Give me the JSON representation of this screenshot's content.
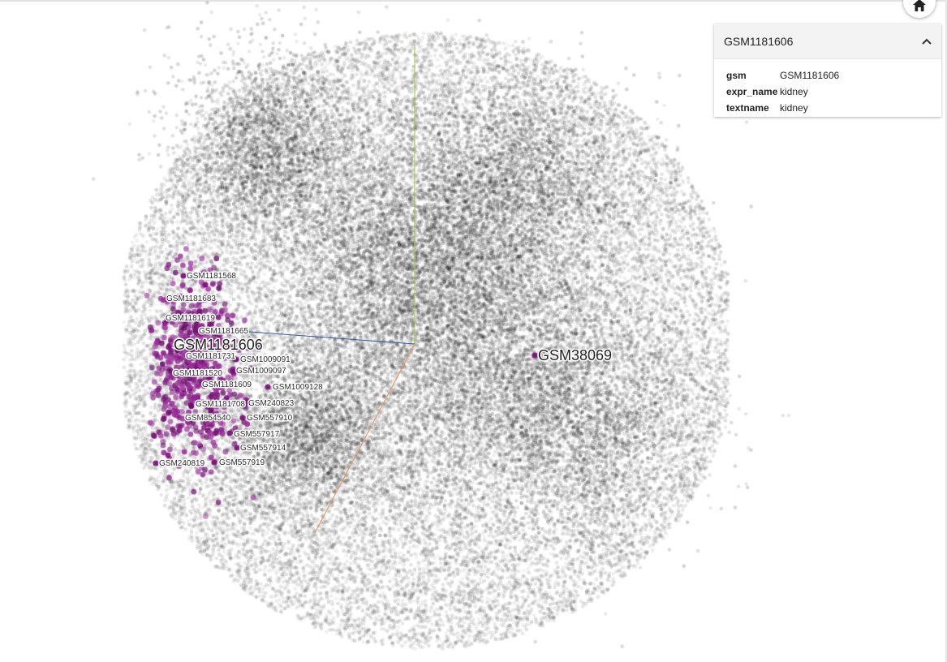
{
  "info_panel": {
    "title": "GSM1181606",
    "properties": [
      {
        "key": "gsm",
        "value": "GSM1181606"
      },
      {
        "key": "expr_name",
        "value": "kidney"
      },
      {
        "key": "textname",
        "value": "kidney"
      }
    ]
  },
  "icons": {
    "home": "home-icon",
    "collapse": "chevron-up-icon"
  },
  "colors": {
    "points": "#000000",
    "highlight": "#8e1a8e",
    "axis_y": "#9acd32",
    "axis_x": "#3a5a9a",
    "axis_z": "#e2a070"
  },
  "labels": [
    {
      "text": "GSM1181568",
      "size": "small"
    },
    {
      "text": "GSM1181683",
      "size": "small"
    },
    {
      "text": "GSM1181619",
      "size": "small"
    },
    {
      "text": "GSM1181665",
      "size": "small"
    },
    {
      "text": "GSM1181606",
      "size": "large"
    },
    {
      "text": "GSM1181731",
      "size": "small"
    },
    {
      "text": "GSM1009091",
      "size": "small"
    },
    {
      "text": "GSM1009097",
      "size": "small"
    },
    {
      "text": "GSM1181520",
      "size": "small"
    },
    {
      "text": "GSM1181609",
      "size": "small"
    },
    {
      "text": "GSM1009128",
      "size": "small"
    },
    {
      "text": "GSM1181708",
      "size": "small"
    },
    {
      "text": "GSM240823",
      "size": "small"
    },
    {
      "text": "GSM854540",
      "size": "small"
    },
    {
      "text": "GSM557910",
      "size": "small"
    },
    {
      "text": "GSM557917",
      "size": "small"
    },
    {
      "text": "GSM557914",
      "size": "small"
    },
    {
      "text": "GSM240819",
      "size": "small"
    },
    {
      "text": "GSM557919",
      "size": "small"
    },
    {
      "text": "GSM38069",
      "size": "large"
    }
  ]
}
